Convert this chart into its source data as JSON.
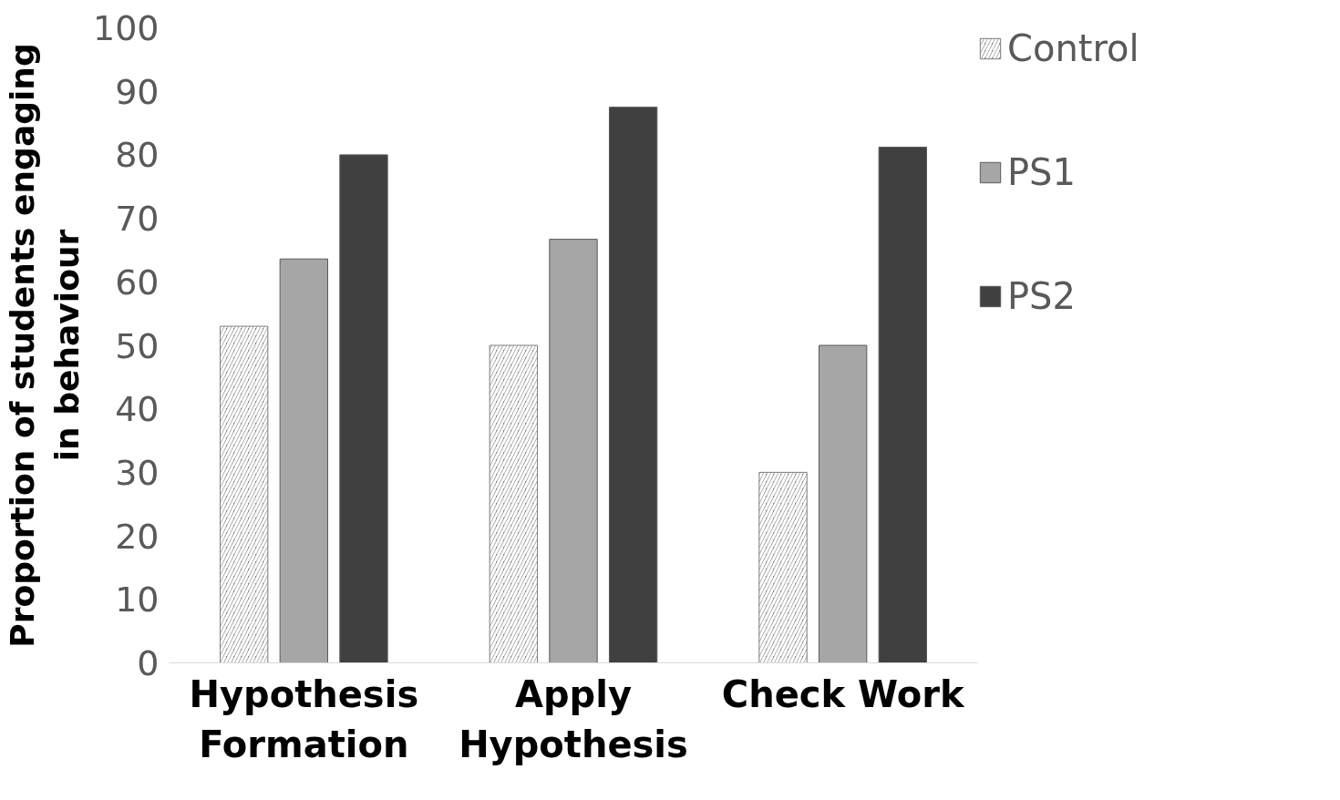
{
  "chart_data": {
    "type": "bar",
    "ylabel": "Proportion of students engaging\nin behaviour",
    "categories": [
      "Hypothesis\nFormation",
      "Apply\nHypothesis",
      "Check Work"
    ],
    "series": [
      {
        "name": "Control",
        "color": "#7f7f7f",
        "values": [
          53,
          50,
          30
        ]
      },
      {
        "name": "PS1",
        "color": "#a6a6a6",
        "values": [
          63.6,
          66.7,
          50
        ]
      },
      {
        "name": "PS2",
        "color": "#404040",
        "values": [
          80,
          87.5,
          81.2
        ]
      }
    ],
    "ylim": [
      0,
      100
    ],
    "yticks": [
      0,
      10,
      20,
      30,
      40,
      50,
      60,
      70,
      80,
      90,
      100
    ],
    "grid": false,
    "legend": "right"
  }
}
